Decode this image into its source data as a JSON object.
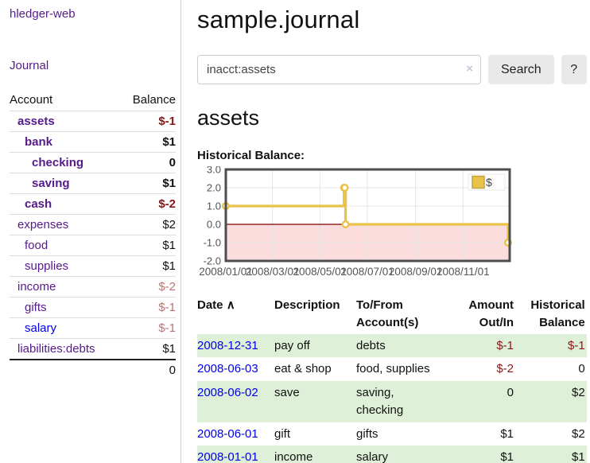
{
  "colors": {
    "link_purple": "#551a8b",
    "link_blue": "#0000ee",
    "negative_strong": "#8b1515",
    "negative_soft": "#bf716f",
    "row_highlight": "#dff0d8",
    "chart_line": "#e9c24a",
    "chart_negative_fill": "#fbdddd",
    "chart_zero_line": "#800000"
  },
  "sidebar": {
    "app_title": "hledger-web",
    "journal_label": "Journal",
    "accounts_table": {
      "headers": [
        "Account",
        "Balance"
      ],
      "rows": [
        {
          "name": "assets",
          "indent": 1,
          "bold": true,
          "balance": "$-1",
          "negative": "strong",
          "link": "purple"
        },
        {
          "name": "bank",
          "indent": 2,
          "bold": true,
          "balance": "$1",
          "negative": null,
          "link": "purple"
        },
        {
          "name": "checking",
          "indent": 3,
          "bold": true,
          "balance": "0",
          "negative": null,
          "link": "purple"
        },
        {
          "name": "saving",
          "indent": 3,
          "bold": true,
          "balance": "$1",
          "negative": null,
          "link": "purple"
        },
        {
          "name": "cash",
          "indent": 2,
          "bold": true,
          "balance": "$-2",
          "negative": "strong",
          "link": "purple"
        },
        {
          "name": "expenses",
          "indent": 1,
          "bold": false,
          "balance": "$2",
          "negative": null,
          "link": "purple"
        },
        {
          "name": "food",
          "indent": 2,
          "bold": false,
          "balance": "$1",
          "negative": null,
          "link": "purple"
        },
        {
          "name": "supplies",
          "indent": 2,
          "bold": false,
          "balance": "$1",
          "negative": null,
          "link": "purple"
        },
        {
          "name": "income",
          "indent": 1,
          "bold": false,
          "balance": "$-2",
          "negative": "soft",
          "link": "purple"
        },
        {
          "name": "gifts",
          "indent": 2,
          "bold": false,
          "balance": "$-1",
          "negative": "soft",
          "link": "purple"
        },
        {
          "name": "salary",
          "indent": 2,
          "bold": false,
          "balance": "$-1",
          "negative": "soft",
          "link": "blue"
        },
        {
          "name": "liabilities:debts",
          "indent": 1,
          "bold": false,
          "balance": "$1",
          "negative": null,
          "link": "purple"
        }
      ],
      "total": "0"
    }
  },
  "main": {
    "title": "sample.journal",
    "search": {
      "value": "inacct:assets",
      "clear_icon": "×",
      "search_label": "Search",
      "help_label": "?"
    },
    "account_heading": "assets",
    "chart_heading": "Historical Balance:"
  },
  "chart_data": {
    "type": "line",
    "step": true,
    "series": [
      {
        "name": "$",
        "points": [
          {
            "date": "2008-01-01",
            "value": 1
          },
          {
            "date": "2008-06-01",
            "value": 2
          },
          {
            "date": "2008-06-02",
            "value": 2
          },
          {
            "date": "2008-06-03",
            "value": 0
          },
          {
            "date": "2008-12-31",
            "value": -1
          }
        ]
      }
    ],
    "xlim": [
      "2008-01-01",
      "2008-12-31"
    ],
    "ylim": [
      -2,
      3
    ],
    "ytick_labels": [
      "3.0",
      "2.0",
      "1.0",
      "0.0",
      "-1.0",
      "-2.0"
    ],
    "ytick_values": [
      3,
      2,
      1,
      0,
      -1,
      -2
    ],
    "xtick_labels": [
      "2008/01/01",
      "2008/03/01",
      "2008/05/01",
      "2008/07/01",
      "2008/09/01",
      "2008/11/01"
    ],
    "xtick_dates": [
      "2008-01-01",
      "2008-03-01",
      "2008-05-01",
      "2008-07-01",
      "2008-09-01",
      "2008-11-01"
    ],
    "legend": "$",
    "legend_position": "top-right",
    "grid": true,
    "xlabel": "",
    "ylabel": ""
  },
  "transactions_table": {
    "headers": [
      {
        "label": "Date",
        "sort_icon": "∧"
      },
      {
        "label": "Description"
      },
      {
        "label": "To/From Account(s)"
      },
      {
        "label": "Amount Out/In"
      },
      {
        "label": "Historical Balance"
      }
    ],
    "rows": [
      {
        "date": "2008-12-31",
        "description": "pay off",
        "accounts": "debts",
        "amount": "$-1",
        "amount_negative": true,
        "balance": "$-1",
        "balance_negative": true,
        "highlight": true
      },
      {
        "date": "2008-06-03",
        "description": "eat & shop",
        "accounts": "food, supplies",
        "amount": "$-2",
        "amount_negative": true,
        "balance": "0",
        "balance_negative": false,
        "highlight": false
      },
      {
        "date": "2008-06-02",
        "description": "save",
        "accounts": "saving, checking",
        "amount": "0",
        "amount_negative": false,
        "balance": "$2",
        "balance_negative": false,
        "highlight": true
      },
      {
        "date": "2008-06-01",
        "description": "gift",
        "accounts": "gifts",
        "amount": "$1",
        "amount_negative": false,
        "balance": "$2",
        "balance_negative": false,
        "highlight": false
      },
      {
        "date": "2008-01-01",
        "description": "income",
        "accounts": "salary",
        "amount": "$1",
        "amount_negative": false,
        "balance": "$1",
        "balance_negative": false,
        "highlight": true
      }
    ]
  }
}
